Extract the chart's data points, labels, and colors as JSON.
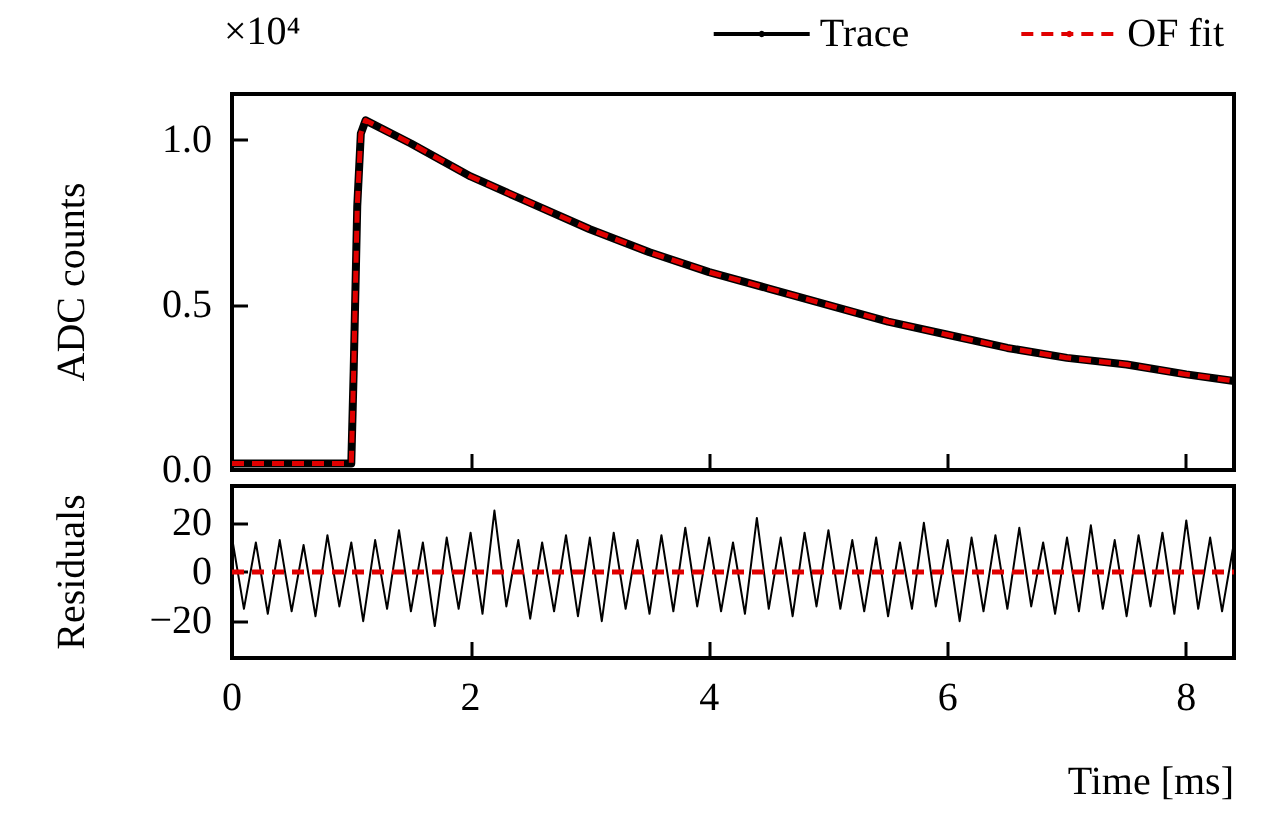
{
  "chart_data": [
    {
      "type": "line",
      "ylabel": "ADC counts",
      "annotations": [
        "×10⁴"
      ],
      "legend": "top right",
      "marker": "none",
      "tick_labels": "y",
      "xlim": [
        0,
        8.4
      ],
      "xticks": [
        0,
        2,
        4,
        6,
        8
      ],
      "ylim": [
        0,
        1.14
      ],
      "yticks": [
        {
          "value": 0,
          "label": "0.0"
        },
        0.5,
        {
          "value": 1,
          "label": "1.0"
        }
      ],
      "series": [
        {
          "name": "Trace",
          "color": "#000000",
          "line_style": "solid",
          "x": [
            0,
            0.5,
            1.0,
            1.02,
            1.05,
            1.08,
            1.12,
            1.5,
            2,
            2.5,
            3,
            3.5,
            4,
            4.5,
            5,
            5.5,
            6,
            6.5,
            7,
            7.5,
            8,
            8.4
          ],
          "values": [
            0.02,
            0.02,
            0.02,
            0.3,
            0.8,
            1.02,
            1.06,
            0.99,
            0.89,
            0.81,
            0.73,
            0.66,
            0.6,
            0.55,
            0.5,
            0.45,
            0.41,
            0.37,
            0.34,
            0.32,
            0.29,
            0.27
          ]
        },
        {
          "name": "OF fit",
          "color": "#e00000",
          "line_style": "dashed",
          "x": [
            0,
            0.5,
            1.0,
            1.02,
            1.05,
            1.08,
            1.12,
            1.5,
            2,
            2.5,
            3,
            3.5,
            4,
            4.5,
            5,
            5.5,
            6,
            6.5,
            7,
            7.5,
            8,
            8.4
          ],
          "values": [
            0.02,
            0.02,
            0.02,
            0.3,
            0.8,
            1.02,
            1.06,
            0.99,
            0.89,
            0.81,
            0.73,
            0.66,
            0.6,
            0.55,
            0.5,
            0.45,
            0.41,
            0.37,
            0.34,
            0.32,
            0.29,
            0.27
          ]
        }
      ]
    },
    {
      "type": "line",
      "ylabel": "Residuals",
      "xlabel": "Time [ms]",
      "marker": "none",
      "xlim": [
        0,
        8.4
      ],
      "xticks": [
        0,
        2,
        4,
        6,
        8
      ],
      "ylim": [
        -35,
        35
      ],
      "yticks": [
        {
          "value": -20,
          "label": "−20"
        },
        0,
        20
      ],
      "series": [
        {
          "color": "#000000",
          "line_style": "solid",
          "x": [
            0,
            0.1,
            0.2,
            0.3,
            0.4,
            0.5,
            0.6,
            0.7,
            0.8,
            0.9,
            1.0,
            1.1,
            1.2,
            1.3,
            1.4,
            1.5,
            1.6,
            1.7,
            1.8,
            1.9,
            2.0,
            2.1,
            2.2,
            2.3,
            2.4,
            2.5,
            2.6,
            2.7,
            2.8,
            2.9,
            3.0,
            3.1,
            3.2,
            3.3,
            3.4,
            3.5,
            3.6,
            3.7,
            3.8,
            3.9,
            4.0,
            4.1,
            4.2,
            4.3,
            4.4,
            4.5,
            4.6,
            4.7,
            4.8,
            4.9,
            5.0,
            5.1,
            5.2,
            5.3,
            5.4,
            5.5,
            5.6,
            5.7,
            5.8,
            5.9,
            6.0,
            6.1,
            6.2,
            6.3,
            6.4,
            6.5,
            6.6,
            6.7,
            6.8,
            6.9,
            7.0,
            7.1,
            7.2,
            7.3,
            7.4,
            7.5,
            7.6,
            7.7,
            7.8,
            7.9,
            8.0,
            8.1,
            8.2,
            8.3,
            8.4
          ],
          "values": [
            14,
            -15,
            12,
            -17,
            13,
            -16,
            11,
            -18,
            15,
            -14,
            12,
            -20,
            13,
            -15,
            17,
            -16,
            12,
            -22,
            14,
            -15,
            16,
            -17,
            25,
            -14,
            13,
            -19,
            12,
            -16,
            15,
            -18,
            14,
            -20,
            16,
            -15,
            13,
            -17,
            15,
            -16,
            18,
            -14,
            14,
            -16,
            12,
            -17,
            22,
            -15,
            14,
            -18,
            16,
            -14,
            17,
            -15,
            13,
            -16,
            14,
            -18,
            12,
            -15,
            20,
            -14,
            13,
            -20,
            14,
            -16,
            15,
            -15,
            18,
            -14,
            12,
            -17,
            14,
            -16,
            19,
            -15,
            13,
            -18,
            15,
            -14,
            16,
            -17,
            21,
            -15,
            14,
            -16,
            12
          ]
        },
        {
          "color": "#e00000",
          "line_style": "dashed",
          "x": [
            0,
            8.4
          ],
          "values": [
            0,
            0
          ]
        }
      ]
    }
  ]
}
